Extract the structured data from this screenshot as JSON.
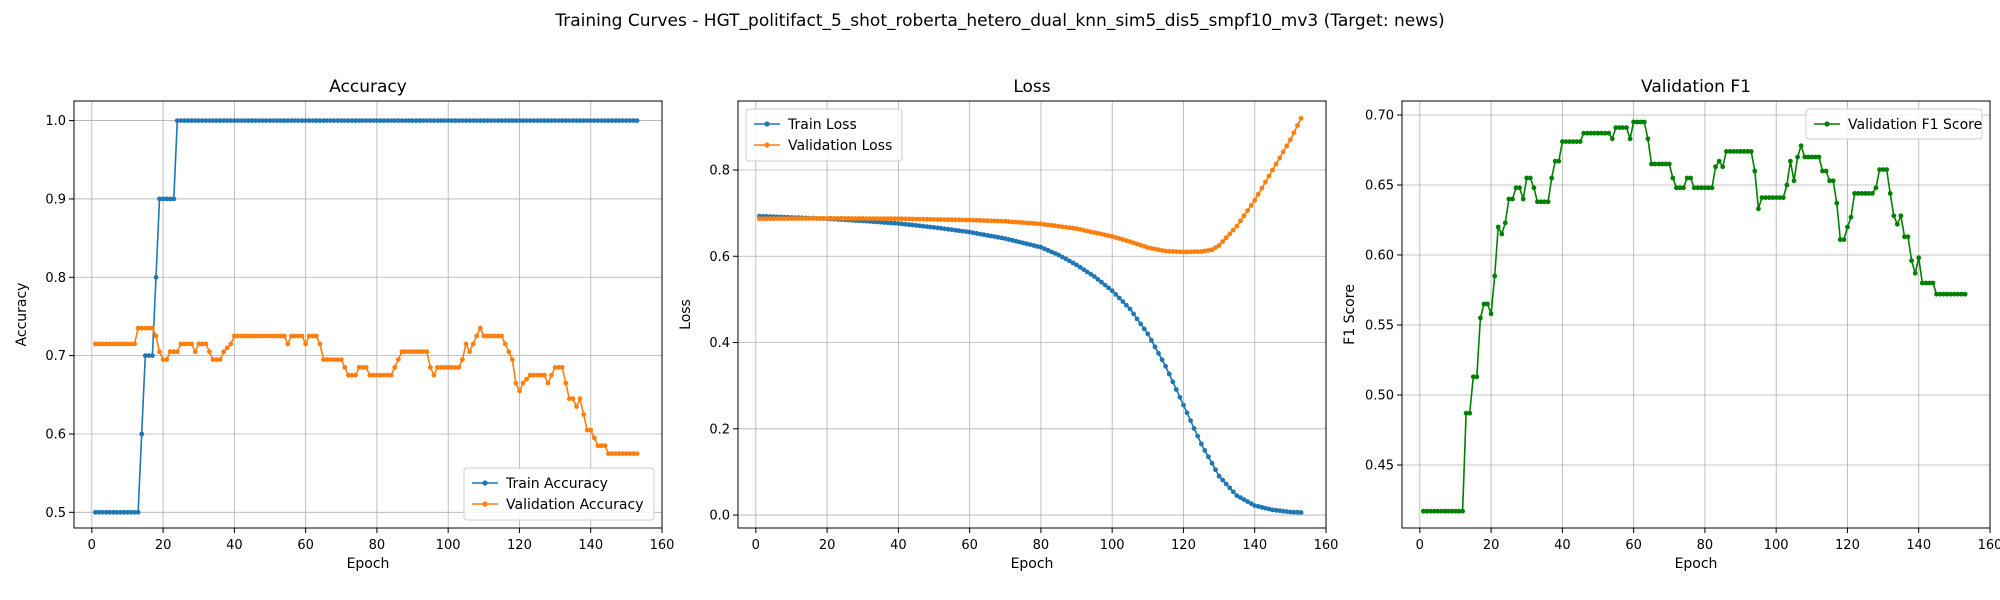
{
  "figure": {
    "title": "Training Curves - HGT_politifact_5_shot_roberta_hetero_dual_knn_sim5_dis5_smpf10_mv3 (Target: news)"
  },
  "chart_data": [
    {
      "type": "line",
      "title": "Accuracy",
      "xlabel": "Epoch",
      "ylabel": "Accuracy",
      "xlim": [
        -5,
        160
      ],
      "ylim": [
        0.48,
        1.025
      ],
      "xticks": [
        0,
        20,
        40,
        60,
        80,
        100,
        120,
        140,
        160
      ],
      "yticks": [
        0.5,
        0.6,
        0.7,
        0.8,
        0.9,
        1.0
      ],
      "ytick_labels": [
        "0.5",
        "0.6",
        "0.7",
        "0.8",
        "0.9",
        "1.0"
      ],
      "grid": true,
      "legend_position": "lower-right",
      "series": [
        {
          "name": "Train Accuracy",
          "color": "#1f77b4",
          "points": [
            [
              1,
              0.5
            ],
            [
              12,
              0.5
            ],
            [
              13,
              0.5
            ],
            [
              14,
              0.6
            ],
            [
              15,
              0.7
            ],
            [
              17,
              0.7
            ],
            [
              18,
              0.8
            ],
            [
              19,
              0.9
            ],
            [
              23,
              0.9
            ],
            [
              24,
              1.0
            ],
            [
              153,
              1.0
            ]
          ]
        },
        {
          "name": "Validation Accuracy",
          "color": "#ff7f0e",
          "points": [
            [
              1,
              0.715
            ],
            [
              12,
              0.715
            ],
            [
              13,
              0.735
            ],
            [
              17,
              0.735
            ],
            [
              18,
              0.725
            ],
            [
              19,
              0.705
            ],
            [
              20,
              0.695
            ],
            [
              21,
              0.695
            ],
            [
              22,
              0.705
            ],
            [
              24,
              0.705
            ],
            [
              25,
              0.715
            ],
            [
              28,
              0.715
            ],
            [
              29,
              0.705
            ],
            [
              30,
              0.715
            ],
            [
              32,
              0.715
            ],
            [
              33,
              0.705
            ],
            [
              34,
              0.695
            ],
            [
              36,
              0.695
            ],
            [
              37,
              0.705
            ],
            [
              39,
              0.715
            ],
            [
              40,
              0.725
            ],
            [
              54,
              0.725
            ],
            [
              55,
              0.715
            ],
            [
              56,
              0.725
            ],
            [
              59,
              0.725
            ],
            [
              60,
              0.715
            ],
            [
              61,
              0.725
            ],
            [
              63,
              0.725
            ],
            [
              64,
              0.715
            ],
            [
              65,
              0.695
            ],
            [
              70,
              0.695
            ],
            [
              71,
              0.685
            ],
            [
              72,
              0.675
            ],
            [
              74,
              0.675
            ],
            [
              75,
              0.685
            ],
            [
              77,
              0.685
            ],
            [
              78,
              0.675
            ],
            [
              84,
              0.675
            ],
            [
              85,
              0.685
            ],
            [
              86,
              0.695
            ],
            [
              87,
              0.705
            ],
            [
              94,
              0.705
            ],
            [
              95,
              0.685
            ],
            [
              96,
              0.675
            ],
            [
              97,
              0.685
            ],
            [
              103,
              0.685
            ],
            [
              104,
              0.695
            ],
            [
              105,
              0.715
            ],
            [
              106,
              0.705
            ],
            [
              107,
              0.715
            ],
            [
              108,
              0.725
            ],
            [
              109,
              0.735
            ],
            [
              110,
              0.725
            ],
            [
              115,
              0.725
            ],
            [
              116,
              0.715
            ],
            [
              117,
              0.705
            ],
            [
              118,
              0.695
            ],
            [
              119,
              0.665
            ],
            [
              120,
              0.655
            ],
            [
              121,
              0.665
            ],
            [
              123,
              0.675
            ],
            [
              127,
              0.675
            ],
            [
              128,
              0.665
            ],
            [
              129,
              0.675
            ],
            [
              130,
              0.685
            ],
            [
              132,
              0.685
            ],
            [
              133,
              0.665
            ],
            [
              134,
              0.645
            ],
            [
              135,
              0.645
            ],
            [
              136,
              0.635
            ],
            [
              137,
              0.645
            ],
            [
              138,
              0.625
            ],
            [
              139,
              0.605
            ],
            [
              140,
              0.605
            ],
            [
              141,
              0.595
            ],
            [
              142,
              0.585
            ],
            [
              144,
              0.585
            ],
            [
              145,
              0.575
            ],
            [
              153,
              0.575
            ]
          ]
        }
      ]
    },
    {
      "type": "line",
      "title": "Loss",
      "xlabel": "Epoch",
      "ylabel": "Loss",
      "xlim": [
        -5,
        160
      ],
      "ylim": [
        -0.03,
        0.96
      ],
      "xticks": [
        0,
        20,
        40,
        60,
        80,
        100,
        120,
        140,
        160
      ],
      "yticks": [
        0.0,
        0.2,
        0.4,
        0.6,
        0.8
      ],
      "ytick_labels": [
        "0.0",
        "0.2",
        "0.4",
        "0.6",
        "0.8"
      ],
      "grid": true,
      "legend_position": "upper-left",
      "series": [
        {
          "name": "Train Loss",
          "color": "#1f77b4",
          "points": [
            [
              1,
              0.693
            ],
            [
              10,
              0.69
            ],
            [
              20,
              0.687
            ],
            [
              30,
              0.682
            ],
            [
              40,
              0.676
            ],
            [
              50,
              0.667
            ],
            [
              60,
              0.656
            ],
            [
              70,
              0.641
            ],
            [
              80,
              0.621
            ],
            [
              85,
              0.603
            ],
            [
              90,
              0.58
            ],
            [
              95,
              0.553
            ],
            [
              100,
              0.52
            ],
            [
              105,
              0.478
            ],
            [
              110,
              0.42
            ],
            [
              115,
              0.345
            ],
            [
              120,
              0.255
            ],
            [
              125,
              0.165
            ],
            [
              130,
              0.09
            ],
            [
              135,
              0.045
            ],
            [
              140,
              0.022
            ],
            [
              145,
              0.012
            ],
            [
              150,
              0.007
            ],
            [
              153,
              0.006
            ]
          ]
        },
        {
          "name": "Validation Loss",
          "color": "#ff7f0e",
          "points": [
            [
              1,
              0.687
            ],
            [
              20,
              0.688
            ],
            [
              40,
              0.687
            ],
            [
              60,
              0.684
            ],
            [
              70,
              0.681
            ],
            [
              80,
              0.675
            ],
            [
              90,
              0.664
            ],
            [
              100,
              0.646
            ],
            [
              105,
              0.634
            ],
            [
              110,
              0.62
            ],
            [
              115,
              0.612
            ],
            [
              120,
              0.61
            ],
            [
              125,
              0.611
            ],
            [
              128,
              0.615
            ],
            [
              130,
              0.625
            ],
            [
              135,
              0.67
            ],
            [
              140,
              0.73
            ],
            [
              145,
              0.8
            ],
            [
              150,
              0.87
            ],
            [
              153,
              0.92
            ]
          ]
        }
      ]
    },
    {
      "type": "line",
      "title": "Validation F1",
      "xlabel": "Epoch",
      "ylabel": "F1 Score",
      "xlim": [
        -5,
        160
      ],
      "ylim": [
        0.405,
        0.71
      ],
      "xticks": [
        0,
        20,
        40,
        60,
        80,
        100,
        120,
        140,
        160
      ],
      "yticks": [
        0.45,
        0.5,
        0.55,
        0.6,
        0.65,
        0.7
      ],
      "ytick_labels": [
        "0.45",
        "0.50",
        "0.55",
        "0.60",
        "0.65",
        "0.70"
      ],
      "grid": true,
      "legend_position": "upper-right",
      "series": [
        {
          "name": "Validation F1 Score",
          "color": "#008000",
          "points": [
            [
              1,
              0.417
            ],
            [
              12,
              0.417
            ],
            [
              13,
              0.487
            ],
            [
              14,
              0.487
            ],
            [
              15,
              0.513
            ],
            [
              16,
              0.513
            ],
            [
              17,
              0.555
            ],
            [
              18,
              0.565
            ],
            [
              19,
              0.565
            ],
            [
              20,
              0.558
            ],
            [
              21,
              0.585
            ],
            [
              22,
              0.62
            ],
            [
              23,
              0.615
            ],
            [
              24,
              0.623
            ],
            [
              25,
              0.64
            ],
            [
              26,
              0.64
            ],
            [
              27,
              0.648
            ],
            [
              28,
              0.648
            ],
            [
              29,
              0.64
            ],
            [
              30,
              0.655
            ],
            [
              31,
              0.655
            ],
            [
              32,
              0.648
            ],
            [
              33,
              0.638
            ],
            [
              34,
              0.638
            ],
            [
              36,
              0.638
            ],
            [
              37,
              0.655
            ],
            [
              38,
              0.667
            ],
            [
              39,
              0.667
            ],
            [
              40,
              0.681
            ],
            [
              45,
              0.681
            ],
            [
              46,
              0.687
            ],
            [
              53,
              0.687
            ],
            [
              54,
              0.683
            ],
            [
              55,
              0.691
            ],
            [
              58,
              0.691
            ],
            [
              59,
              0.683
            ],
            [
              60,
              0.695
            ],
            [
              63,
              0.695
            ],
            [
              64,
              0.683
            ],
            [
              65,
              0.665
            ],
            [
              70,
              0.665
            ],
            [
              71,
              0.655
            ],
            [
              72,
              0.648
            ],
            [
              74,
              0.648
            ],
            [
              75,
              0.655
            ],
            [
              76,
              0.655
            ],
            [
              77,
              0.648
            ],
            [
              82,
              0.648
            ],
            [
              83,
              0.663
            ],
            [
              84,
              0.667
            ],
            [
              85,
              0.663
            ],
            [
              86,
              0.674
            ],
            [
              93,
              0.674
            ],
            [
              94,
              0.66
            ],
            [
              95,
              0.633
            ],
            [
              96,
              0.641
            ],
            [
              102,
              0.641
            ],
            [
              103,
              0.65
            ],
            [
              104,
              0.667
            ],
            [
              105,
              0.653
            ],
            [
              106,
              0.67
            ],
            [
              107,
              0.678
            ],
            [
              108,
              0.67
            ],
            [
              112,
              0.67
            ],
            [
              113,
              0.66
            ],
            [
              114,
              0.66
            ],
            [
              115,
              0.653
            ],
            [
              116,
              0.653
            ],
            [
              117,
              0.637
            ],
            [
              118,
              0.611
            ],
            [
              119,
              0.611
            ],
            [
              120,
              0.62
            ],
            [
              121,
              0.627
            ],
            [
              122,
              0.644
            ],
            [
              127,
              0.644
            ],
            [
              128,
              0.648
            ],
            [
              129,
              0.661
            ],
            [
              131,
              0.661
            ],
            [
              132,
              0.644
            ],
            [
              133,
              0.628
            ],
            [
              134,
              0.622
            ],
            [
              135,
              0.628
            ],
            [
              136,
              0.613
            ],
            [
              137,
              0.613
            ],
            [
              138,
              0.596
            ],
            [
              139,
              0.587
            ],
            [
              140,
              0.598
            ],
            [
              141,
              0.58
            ],
            [
              144,
              0.58
            ],
            [
              145,
              0.572
            ],
            [
              153,
              0.572
            ]
          ]
        }
      ]
    }
  ]
}
